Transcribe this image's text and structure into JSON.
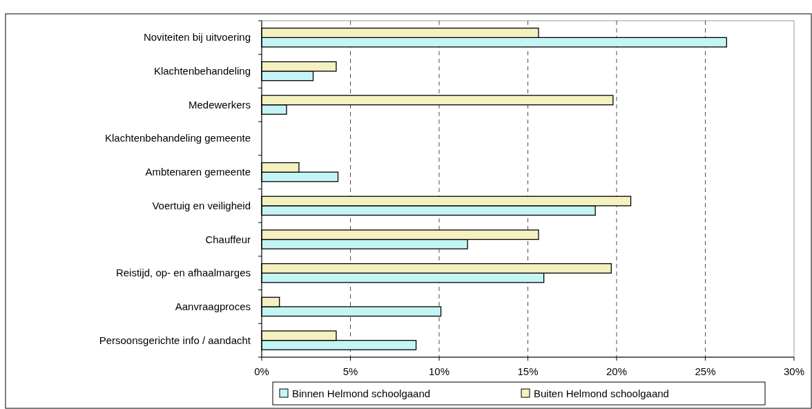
{
  "chart_data": {
    "type": "bar",
    "orientation": "horizontal",
    "categories": [
      "Noviteiten bij uitvoering",
      "Klachtenbehandeling",
      "Medewerkers",
      "Klachtenbehandeling gemeente",
      "Ambtenaren gemeente",
      "Voertuig en veiligheid",
      "Chauffeur",
      "Reistijd, op- en afhaalmarges",
      "Aanvraagproces",
      "Persoonsgerichte info / aandacht"
    ],
    "series": [
      {
        "name": "Binnen Helmond schoolgaand",
        "color": "#c4f4f4",
        "values": [
          26.2,
          2.9,
          1.4,
          null,
          4.3,
          18.8,
          11.6,
          15.9,
          10.1,
          8.7
        ]
      },
      {
        "name": "Buiten Helmond schoolgaand",
        "color": "#f4f0c0",
        "values": [
          15.6,
          4.2,
          19.8,
          null,
          2.1,
          20.8,
          15.6,
          19.7,
          1.0,
          4.2
        ]
      }
    ],
    "xlim": [
      0,
      30
    ],
    "xticks": [
      {
        "value": 0,
        "label": "0%"
      },
      {
        "value": 5,
        "label": "5%"
      },
      {
        "value": 10,
        "label": "10%"
      },
      {
        "value": 15,
        "label": "15%"
      },
      {
        "value": 20,
        "label": "20%"
      },
      {
        "value": 25,
        "label": "25%"
      },
      {
        "value": 30,
        "label": "30%"
      }
    ],
    "grid": "x",
    "legend": "bottom"
  }
}
